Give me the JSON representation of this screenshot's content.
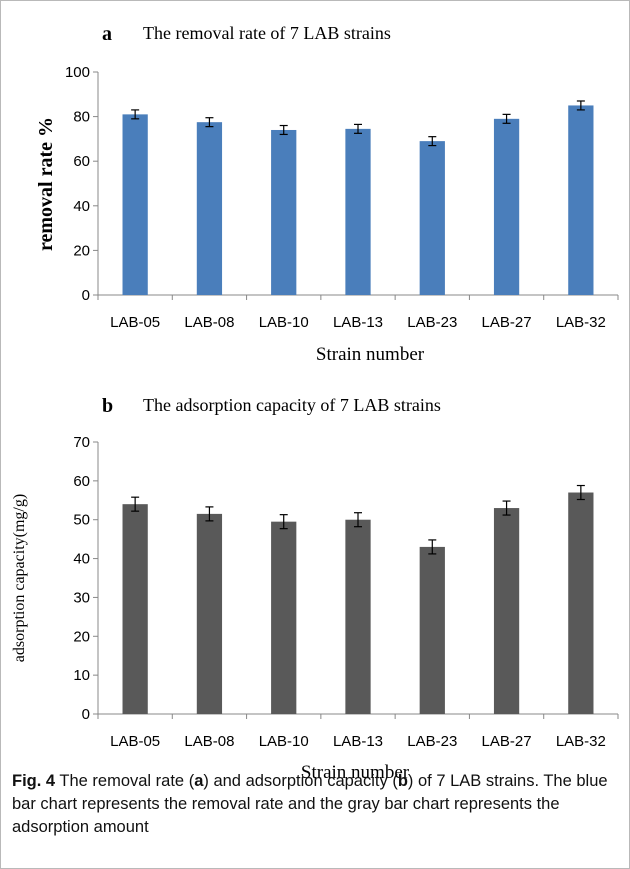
{
  "chart_data": [
    {
      "type": "bar",
      "panel": "a",
      "title": "The removal rate of 7 LAB strains",
      "xlabel": "Strain number",
      "ylabel": "removal rate %",
      "categories": [
        "LAB-05",
        "LAB-08",
        "LAB-10",
        "LAB-13",
        "LAB-23",
        "LAB-27",
        "LAB-32"
      ],
      "values": [
        81,
        77.5,
        74,
        74.5,
        69,
        79,
        85
      ],
      "error": [
        2,
        2,
        2,
        2,
        2,
        2,
        2
      ],
      "ylim": [
        0,
        100
      ],
      "yticks": [
        0,
        20,
        40,
        60,
        80,
        100
      ],
      "color": "#4a7ebb",
      "grid": false
    },
    {
      "type": "bar",
      "panel": "b",
      "title": "The adsorption capacity of 7 LAB strains",
      "xlabel": "Strain number",
      "ylabel": "adsorption capacity(mg/g)",
      "categories": [
        "LAB-05",
        "LAB-08",
        "LAB-10",
        "LAB-13",
        "LAB-23",
        "LAB-27",
        "LAB-32"
      ],
      "values": [
        54,
        51.5,
        49.5,
        50,
        43,
        53,
        57
      ],
      "error": [
        1.8,
        1.8,
        1.8,
        1.8,
        1.8,
        1.8,
        1.8
      ],
      "ylim": [
        0,
        70
      ],
      "yticks": [
        0,
        10,
        20,
        30,
        40,
        50,
        60,
        70
      ],
      "color": "#595959",
      "grid": false
    }
  ],
  "caption": {
    "label": "Fig. 4",
    "part1": "The removal rate (",
    "letter_a": "a",
    "part2": ") and adsorption capacity (",
    "letter_b": "b",
    "part3": ") of 7 LAB strains. The blue bar chart represents the removal rate and the gray bar chart represents the adsorption amount"
  }
}
